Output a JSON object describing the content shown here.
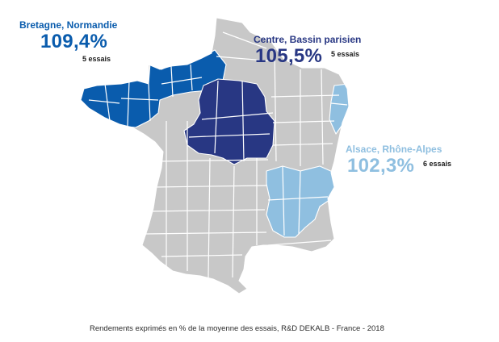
{
  "colors": {
    "default_departments": "#c8c8c8",
    "bretagne_normandie": "#0a5cad",
    "centre_bassin_parisien": "#283783",
    "alsace_rhone_alpes": "#8fbfe0"
  },
  "regions": [
    {
      "name": "Bretagne, Normandie",
      "value": "109,4%",
      "trials": "5 essais",
      "color": "#0a5cad"
    },
    {
      "name": "Centre, Bassin parisien",
      "value": "105,5%",
      "trials": "5 essais",
      "color": "#283783"
    },
    {
      "name": "Alsace, Rhône-Alpes",
      "value": "102,3%",
      "trials": "6 essais",
      "color": "#8fbfe0"
    }
  ],
  "caption": "Rendements exprimés en % de la moyenne des essais, R&D DEKALB - France - 2018"
}
